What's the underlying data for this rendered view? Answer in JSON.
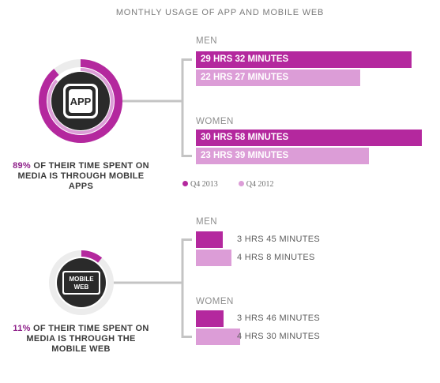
{
  "chart_data": {
    "type": "bar",
    "title": "MONTHLY USAGE OF APP AND MOBILE WEB",
    "legend": [
      "Q4 2013",
      "Q4 2012"
    ],
    "legend_placement": "bottom-left of app section",
    "colors": {
      "q4_2013": "#b4289e",
      "q4_2012": "#dc9dd7",
      "dark": "#2a2a2a",
      "ring_track": "#ececec",
      "line": "#c4c4c4"
    },
    "panels": [
      {
        "name": "app",
        "icon": "app-icon",
        "icon_label": "APP",
        "share_value": 0.89,
        "share_pct": "89%",
        "share_text": "OF THEIR TIME SPENT ON MEDIA IS THROUGH MOBILE APPS",
        "groups": [
          {
            "name": "MEN",
            "values_minutes": [
              1772,
              1347
            ],
            "labels": [
              "29 HRS 32 MINUTES",
              "22 HRS 27 MINUTES"
            ]
          },
          {
            "name": "WOMEN",
            "values_minutes": [
              1858,
              1419
            ],
            "labels": [
              "30 HRS 58 MINUTES",
              "23 HRS 39 MINUTES"
            ]
          }
        ]
      },
      {
        "name": "mobile-web",
        "icon": "browser-window-icon",
        "icon_label": "MOBILE WEB",
        "share_value": 0.11,
        "share_pct": "11%",
        "share_text": "OF THEIR TIME SPENT ON MEDIA IS THROUGH THE MOBILE WEB",
        "groups": [
          {
            "name": "MEN",
            "values_minutes": [
              225,
              248
            ],
            "labels": [
              "3 HRS 45 MINUTES",
              "4 HRS 8 MINUTES"
            ]
          },
          {
            "name": "WOMEN",
            "values_minutes": [
              226,
              270
            ],
            "labels": [
              "3 HRS 46 MINUTES",
              "4 HRS 30 MINUTES"
            ]
          }
        ]
      }
    ]
  }
}
